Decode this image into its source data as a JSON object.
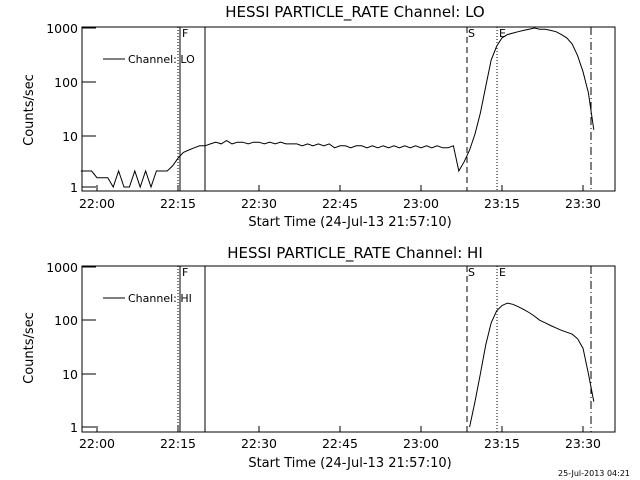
{
  "timestamp": "25-Jul-2013 04:21",
  "chart_data": [
    {
      "type": "line",
      "title": "HESSI PARTICLE_RATE Channel: LO",
      "xlabel": "Start Time (24-Jul-13 21:57:10)",
      "ylabel": "Counts/sec",
      "yscale": "log",
      "ylim": [
        1,
        1000
      ],
      "xlim": [
        "21:57",
        "23:35"
      ],
      "yticks": [
        "1",
        "10",
        "100",
        "1000"
      ],
      "xticks": [
        "22:00",
        "22:15",
        "22:30",
        "22:45",
        "23:00",
        "23:15",
        "23:30"
      ],
      "grid": false,
      "legend": "top-left",
      "markers": [
        {
          "label": "F",
          "time": "22:15.2",
          "style": "dotted"
        },
        {
          "label": "",
          "time": "22:15.5",
          "style": "solid"
        },
        {
          "label": "",
          "time": "22:20",
          "style": "solid"
        },
        {
          "label": "S",
          "time": "23:09",
          "style": "dashed"
        },
        {
          "label": "E",
          "time": "23:15",
          "style": "dotted"
        },
        {
          "label": "",
          "time": "23:32",
          "style": "dashdot"
        }
      ],
      "series": [
        {
          "name": "Channel: LO",
          "points": [
            [
              "21:57",
              2
            ],
            [
              "21:58",
              2
            ],
            [
              "21:59",
              2
            ],
            [
              "22:00",
              1.5
            ],
            [
              "22:01",
              1.5
            ],
            [
              "22:02",
              1.5
            ],
            [
              "22:03",
              1
            ],
            [
              "22:04",
              2
            ],
            [
              "22:05",
              1
            ],
            [
              "22:06",
              1
            ],
            [
              "22:07",
              2
            ],
            [
              "22:08",
              1
            ],
            [
              "22:09",
              2
            ],
            [
              "22:10",
              1
            ],
            [
              "22:11",
              2
            ],
            [
              "22:12",
              2
            ],
            [
              "22:13",
              2
            ],
            [
              "22:14",
              2.5
            ],
            [
              "22:15",
              3.5
            ],
            [
              "22:16",
              4.5
            ],
            [
              "22:17",
              5
            ],
            [
              "22:18",
              5.5
            ],
            [
              "22:19",
              6
            ],
            [
              "22:20",
              6
            ],
            [
              "22:21",
              6.5
            ],
            [
              "22:22",
              7
            ],
            [
              "22:23",
              6.5
            ],
            [
              "22:24",
              7.5
            ],
            [
              "22:25",
              6.5
            ],
            [
              "22:26",
              7
            ],
            [
              "22:27",
              7
            ],
            [
              "22:28",
              6.5
            ],
            [
              "22:29",
              7
            ],
            [
              "22:30",
              7
            ],
            [
              "22:31",
              6.5
            ],
            [
              "22:32",
              7
            ],
            [
              "22:33",
              6.5
            ],
            [
              "22:34",
              7
            ],
            [
              "22:35",
              6.5
            ],
            [
              "22:36",
              6.5
            ],
            [
              "22:37",
              6.5
            ],
            [
              "22:38",
              6
            ],
            [
              "22:39",
              6.5
            ],
            [
              "22:40",
              6
            ],
            [
              "22:41",
              6.5
            ],
            [
              "22:42",
              6
            ],
            [
              "22:43",
              6.5
            ],
            [
              "22:44",
              5.5
            ],
            [
              "22:45",
              6
            ],
            [
              "22:46",
              6
            ],
            [
              "22:47",
              5.5
            ],
            [
              "22:48",
              6
            ],
            [
              "22:49",
              6
            ],
            [
              "22:50",
              5.5
            ],
            [
              "22:51",
              6
            ],
            [
              "22:52",
              5.5
            ],
            [
              "22:53",
              6
            ],
            [
              "22:54",
              5.5
            ],
            [
              "22:55",
              6
            ],
            [
              "22:56",
              5.5
            ],
            [
              "22:57",
              6
            ],
            [
              "22:58",
              5.5
            ],
            [
              "22:59",
              6
            ],
            [
              "23:00",
              5.5
            ],
            [
              "23:01",
              6
            ],
            [
              "23:02",
              5.5
            ],
            [
              "23:03",
              6
            ],
            [
              "23:04",
              5.5
            ],
            [
              "23:05",
              5.5
            ],
            [
              "23:06",
              6
            ],
            [
              "23:07",
              2
            ],
            [
              "23:08",
              3
            ],
            [
              "23:09",
              5
            ],
            [
              "23:10",
              10
            ],
            [
              "23:11",
              25
            ],
            [
              "23:12",
              80
            ],
            [
              "23:13",
              250
            ],
            [
              "23:14",
              450
            ],
            [
              "23:15",
              650
            ],
            [
              "23:16",
              750
            ],
            [
              "23:17",
              800
            ],
            [
              "23:18",
              850
            ],
            [
              "23:19",
              900
            ],
            [
              "23:20",
              950
            ],
            [
              "23:21",
              1000
            ],
            [
              "23:22",
              950
            ],
            [
              "23:23",
              950
            ],
            [
              "23:24",
              900
            ],
            [
              "23:25",
              850
            ],
            [
              "23:26",
              750
            ],
            [
              "23:27",
              650
            ],
            [
              "23:28",
              500
            ],
            [
              "23:29",
              300
            ],
            [
              "23:30",
              150
            ],
            [
              "23:31",
              60
            ],
            [
              "23:32",
              12
            ]
          ]
        }
      ]
    },
    {
      "type": "line",
      "title": "HESSI PARTICLE_RATE Channel: HI",
      "xlabel": "Start Time (24-Jul-13 21:57:10)",
      "ylabel": "Counts/sec",
      "yscale": "log",
      "ylim": [
        1,
        1000
      ],
      "xlim": [
        "21:57",
        "23:35"
      ],
      "yticks": [
        "1",
        "10",
        "100",
        "1000"
      ],
      "xticks": [
        "22:00",
        "22:15",
        "22:30",
        "22:45",
        "23:00",
        "23:15",
        "23:30"
      ],
      "grid": false,
      "legend": "top-left",
      "markers": [
        {
          "label": "F",
          "time": "22:15.2",
          "style": "dotted"
        },
        {
          "label": "",
          "time": "22:15.5",
          "style": "solid"
        },
        {
          "label": "",
          "time": "22:20",
          "style": "solid"
        },
        {
          "label": "S",
          "time": "23:09",
          "style": "dashed"
        },
        {
          "label": "E",
          "time": "23:15",
          "style": "dotted"
        },
        {
          "label": "",
          "time": "23:32",
          "style": "dashdot"
        }
      ],
      "series": [
        {
          "name": "Channel: HI",
          "points": [
            [
              "23:09",
              1
            ],
            [
              "23:10",
              3
            ],
            [
              "23:11",
              10
            ],
            [
              "23:12",
              35
            ],
            [
              "23:13",
              90
            ],
            [
              "23:14",
              150
            ],
            [
              "23:15",
              190
            ],
            [
              "23:16",
              210
            ],
            [
              "23:17",
              200
            ],
            [
              "23:18",
              180
            ],
            [
              "23:19",
              160
            ],
            [
              "23:20",
              140
            ],
            [
              "23:21",
              120
            ],
            [
              "23:22",
              100
            ],
            [
              "23:23",
              90
            ],
            [
              "23:24",
              80
            ],
            [
              "23:25",
              72
            ],
            [
              "23:26",
              65
            ],
            [
              "23:27",
              60
            ],
            [
              "23:28",
              55
            ],
            [
              "23:29",
              45
            ],
            [
              "23:30",
              30
            ],
            [
              "23:31",
              10
            ],
            [
              "23:32",
              3
            ]
          ]
        }
      ]
    }
  ]
}
